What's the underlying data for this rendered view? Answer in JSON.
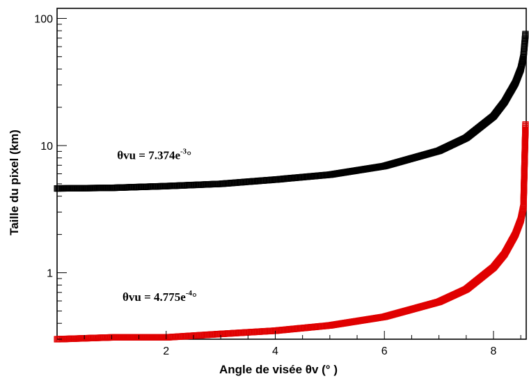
{
  "chart_data": {
    "type": "scatter",
    "xlabel": "Angle de visée θv (° )",
    "ylabel": "Taille du pixel (km)",
    "xlim": [
      0,
      8.6
    ],
    "ylim": [
      0.3,
      120
    ],
    "yscale": "log",
    "grid": false,
    "x_ticks": [
      2,
      4,
      6,
      8
    ],
    "x_tick_labels": [
      "2",
      "4",
      "6",
      "8"
    ],
    "y_ticks": [
      1,
      10,
      100
    ],
    "y_tick_labels": [
      "1",
      "10",
      "100"
    ],
    "marker": "square",
    "series": [
      {
        "color": "#000000",
        "x": [
          0,
          1,
          2,
          3,
          4,
          5,
          6,
          7,
          7.5,
          8,
          8.2,
          8.4,
          8.5,
          8.55,
          8.6
        ],
        "y": [
          4.6,
          4.65,
          4.8,
          5.0,
          5.4,
          5.9,
          6.9,
          9.1,
          11.5,
          17,
          22,
          31,
          40,
          50,
          88
        ]
      },
      {
        "color": "#e00000",
        "x": [
          0,
          1,
          2,
          3,
          4,
          5,
          6,
          7,
          7.5,
          8,
          8.2,
          8.4,
          8.5,
          8.55,
          8.6
        ],
        "y": [
          0.3,
          0.31,
          0.31,
          0.33,
          0.35,
          0.385,
          0.45,
          0.59,
          0.74,
          1.1,
          1.4,
          2.0,
          2.6,
          3.3,
          25
        ]
      }
    ],
    "annotations": [
      {
        "base": "θvu = 7.374e",
        "sup": "-3",
        "tail": "°",
        "x": 1.1,
        "y": 7.8
      },
      {
        "base": "θvu = 4.775e",
        "sup": "-4",
        "tail": "°",
        "x": 1.2,
        "y": 0.6
      }
    ]
  }
}
